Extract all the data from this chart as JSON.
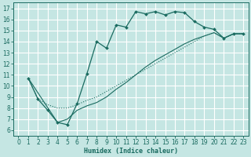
{
  "xlabel": "Humidex (Indice chaleur)",
  "bg_color": "#c5e6e3",
  "grid_color": "#ffffff",
  "line_color": "#1a6b60",
  "xlim": [
    -0.5,
    23.5
  ],
  "ylim": [
    5.5,
    17.5
  ],
  "xticks": [
    0,
    1,
    2,
    3,
    4,
    5,
    6,
    7,
    8,
    9,
    10,
    11,
    12,
    13,
    14,
    15,
    16,
    17,
    18,
    19,
    20,
    21,
    22,
    23
  ],
  "yticks": [
    6,
    7,
    8,
    9,
    10,
    11,
    12,
    13,
    14,
    15,
    16,
    17
  ],
  "line1_x": [
    1,
    2,
    3,
    4,
    5,
    6,
    7,
    8,
    9,
    10,
    11,
    12,
    13,
    14,
    15,
    16,
    17,
    18,
    19,
    20,
    21,
    22,
    23
  ],
  "line1_y": [
    10.7,
    8.8,
    7.8,
    6.7,
    6.5,
    8.4,
    11.1,
    14.0,
    13.4,
    15.5,
    15.3,
    16.7,
    16.5,
    16.7,
    16.4,
    16.7,
    16.6,
    15.8,
    15.3,
    15.1,
    14.3,
    14.7,
    14.7
  ],
  "line2_x": [
    1,
    2,
    3,
    4,
    5,
    6,
    7,
    8,
    9,
    10,
    11,
    12,
    13,
    14,
    15,
    16,
    17,
    18,
    19,
    20,
    21,
    22,
    23
  ],
  "line2_y": [
    10.7,
    8.8,
    8.3,
    8.0,
    8.0,
    8.3,
    8.7,
    9.0,
    9.5,
    10.0,
    10.5,
    11.0,
    11.5,
    12.0,
    12.5,
    13.0,
    13.5,
    14.0,
    14.5,
    14.8,
    14.3,
    14.7,
    14.7
  ],
  "line3_x": [
    1,
    4,
    5,
    6,
    7,
    8,
    9,
    10,
    11,
    12,
    13,
    14,
    15,
    16,
    17,
    18,
    19,
    20,
    21,
    22,
    23
  ],
  "line3_y": [
    10.7,
    6.7,
    7.0,
    7.8,
    8.2,
    8.5,
    9.0,
    9.7,
    10.3,
    11.0,
    11.7,
    12.3,
    12.8,
    13.3,
    13.8,
    14.2,
    14.5,
    14.8,
    14.3,
    14.7,
    14.7
  ]
}
